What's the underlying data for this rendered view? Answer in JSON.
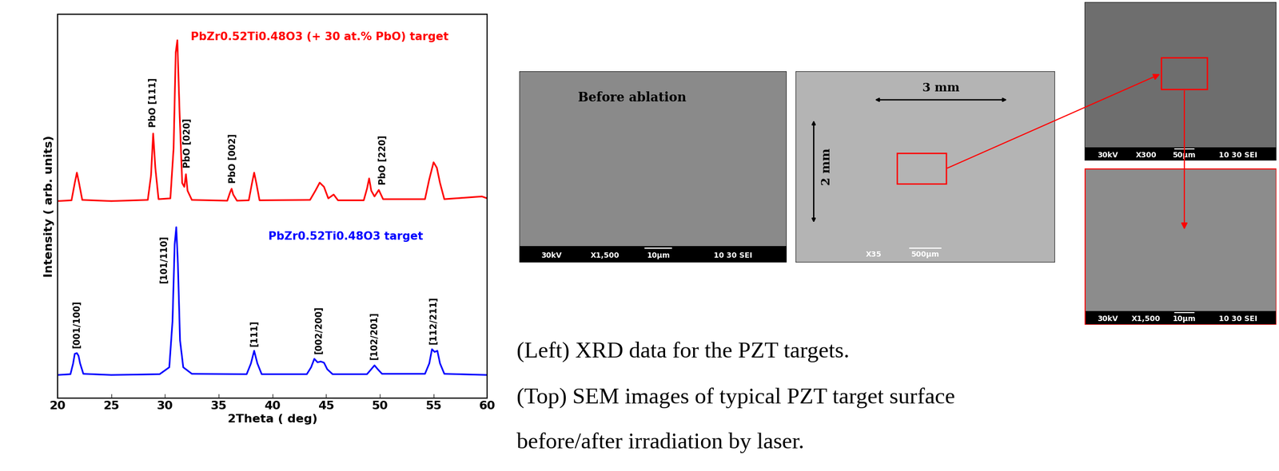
{
  "chart_data": {
    "type": "line",
    "xlabel": "2Theta ( deg)",
    "ylabel": "Intensity ( arb. units)",
    "xlim": [
      20,
      60
    ],
    "xticks": [
      20,
      25,
      30,
      35,
      40,
      45,
      50,
      55,
      60
    ],
    "ylim": [
      0,
      100
    ],
    "tick_labels": "x",
    "grid": false,
    "series": [
      {
        "name": "PbZr0.52Ti0.48O3 (+ 30 at.% PbO) target",
        "color": "#ff0000",
        "x": [
          20,
          21.3,
          21.6,
          21.8,
          22.0,
          22.3,
          25,
          28.4,
          28.7,
          28.9,
          29.1,
          29.4,
          30.5,
          30.8,
          31.0,
          31.15,
          31.35,
          31.6,
          31.8,
          31.95,
          32.1,
          32.5,
          35.8,
          36.05,
          36.2,
          36.35,
          36.7,
          37.8,
          38.1,
          38.3,
          38.5,
          38.8,
          43.5,
          44.0,
          44.4,
          44.8,
          45.2,
          45.7,
          46.1,
          48.5,
          48.8,
          49.0,
          49.2,
          49.5,
          49.9,
          50.3,
          54.2,
          54.6,
          55.0,
          55.3,
          55.6,
          56.0,
          59.5,
          60
        ],
        "values": [
          51.3,
          51.5,
          56,
          58.7,
          56,
          51.6,
          51.3,
          51.6,
          58,
          68.9,
          60,
          51.8,
          52,
          65,
          90,
          93.2,
          75,
          56,
          55,
          58.3,
          54,
          51.6,
          51.4,
          53.5,
          54.5,
          53,
          51.4,
          51.5,
          56,
          58.7,
          56,
          51.5,
          51.6,
          54,
          56.1,
          55,
          52,
          53,
          51.5,
          51.5,
          54.5,
          57.2,
          54,
          52.5,
          54.2,
          51.8,
          51.8,
          57,
          61.4,
          60,
          56,
          51.8,
          52.5,
          52
        ]
      },
      {
        "name": "PbZr0.52Ti0.48O3 target",
        "color": "#0000ff",
        "x": [
          20,
          21.2,
          21.45,
          21.6,
          21.8,
          21.95,
          22.1,
          22.4,
          25,
          29.5,
          30.4,
          30.7,
          30.9,
          31.05,
          31.2,
          31.4,
          31.7,
          32.5,
          37.6,
          38.0,
          38.3,
          38.6,
          39.0,
          43.2,
          43.6,
          43.9,
          44.2,
          44.5,
          44.8,
          45.1,
          45.6,
          48.8,
          49.2,
          49.5,
          49.8,
          50.2,
          54.2,
          54.6,
          54.85,
          55.1,
          55.35,
          55.6,
          56.0,
          60
        ],
        "values": [
          6,
          6.2,
          9,
          11.5,
          11.7,
          11,
          9,
          6.3,
          6,
          6.2,
          8,
          20,
          40,
          44.5,
          35,
          15,
          8,
          6.3,
          6.2,
          9,
          12.3,
          9,
          6.2,
          6.2,
          8,
          10.2,
          9.3,
          9.5,
          9.2,
          7.5,
          6.2,
          6.2,
          7.5,
          8.5,
          7.5,
          6.3,
          6.3,
          9,
          12.7,
          12,
          12.3,
          9,
          6.3,
          6
        ]
      }
    ],
    "annotations": [
      {
        "text": "PbO [111]",
        "x": 28.9,
        "y": 70.5
      },
      {
        "text": "PbO [020]",
        "x": 32.1,
        "y": 60
      },
      {
        "text": "PbO [002]",
        "x": 36.3,
        "y": 56
      },
      {
        "text": "PbO [220]",
        "x": 50.3,
        "y": 55.5
      },
      {
        "text": "[001/100]",
        "x": 21.8,
        "y": 13
      },
      {
        "text": "[101/110]",
        "x": 29.9,
        "y": 30
      },
      {
        "text": "[111]",
        "x": 38.3,
        "y": 13.5
      },
      {
        "text": "[002/200]",
        "x": 44.3,
        "y": 11.5
      },
      {
        "text": "[102/201]",
        "x": 49.5,
        "y": 10
      },
      {
        "text": "[112/211]",
        "x": 55.0,
        "y": 14
      }
    ]
  },
  "images": [
    {
      "label": "Before ablation",
      "info_bar": [
        "30kV",
        "X1,500",
        "10μm",
        "10 30 SEI"
      ]
    },
    {
      "width_label": "3 mm",
      "height_label": "2 mm",
      "info_bar": [
        "X35",
        "500μm"
      ]
    },
    {
      "info_bar": [
        "30kV",
        "X300",
        "50μm",
        "10 30 SEI"
      ]
    },
    {
      "info_bar": [
        "30kV",
        "X1,500",
        "10μm",
        "10 30 SEI"
      ]
    }
  ],
  "caption": [
    "(Left) XRD data for the PZT targets.",
    "(Top) SEM images of typical PZT target surface",
    "before/after irradiation by laser."
  ]
}
